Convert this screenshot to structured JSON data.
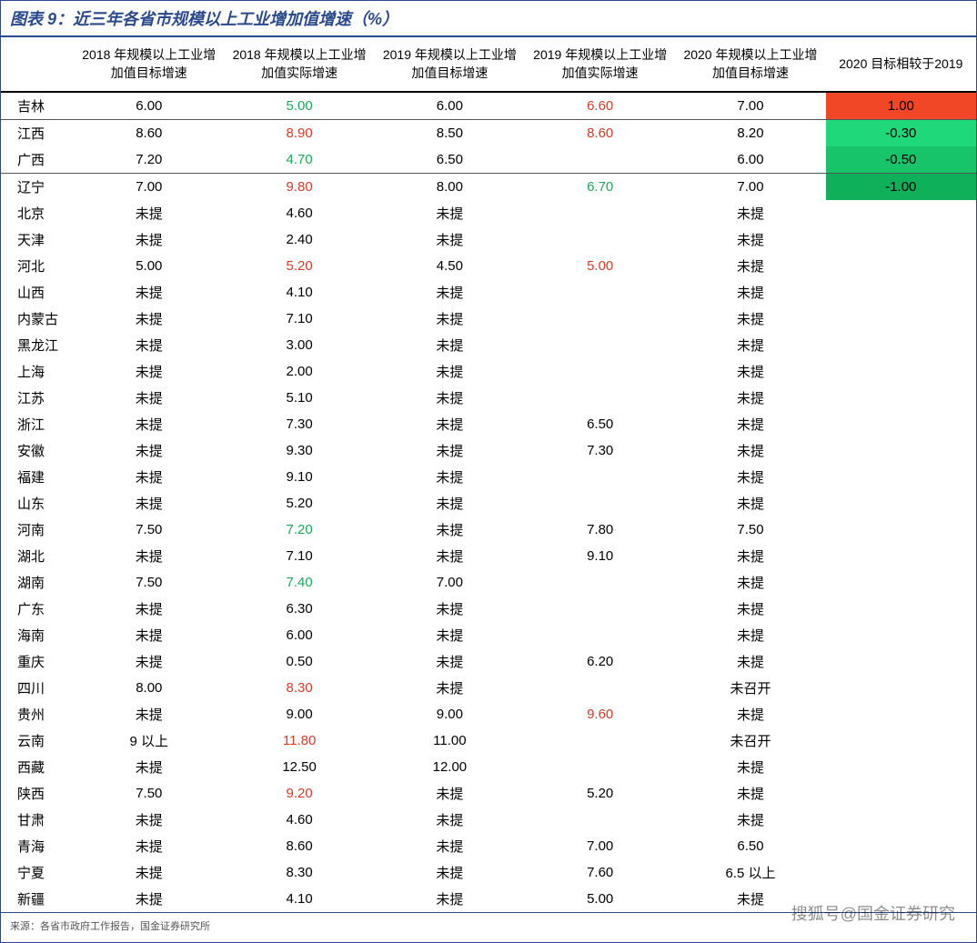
{
  "title": "图表 9：近三年各省市规模以上工业增加值增速（%）",
  "columns": [
    "2018 年规模以上工业增加值目标增速",
    "2018 年规模以上工业增加值实际增速",
    "2019 年规模以上工业增加值目标增速",
    "2019 年规模以上工业增加值实际增速",
    "2020 年规模以上工业增加值目标增速",
    "2020 目标相较于2019"
  ],
  "colors": {
    "accent": "#2b4a8b",
    "red": "#d83a2b",
    "green": "#1fa65a",
    "hl_red_bg": "#f24726",
    "hl_green_bg": "#1fd87a",
    "hl_green_bg2": "#17c46a",
    "hl_green_bg3": "#0fb05a"
  },
  "rows": [
    {
      "p": "吉林",
      "c": [
        {
          "t": "6.00"
        },
        {
          "t": "5.00",
          "fg": "#1fa65a"
        },
        {
          "t": "6.00"
        },
        {
          "t": "6.60",
          "fg": "#d83a2b"
        },
        {
          "t": "7.00"
        },
        {
          "t": "1.00",
          "bg": "#f24726"
        }
      ],
      "topline": true
    },
    {
      "p": "江西",
      "c": [
        {
          "t": "8.60"
        },
        {
          "t": "8.90",
          "fg": "#d83a2b"
        },
        {
          "t": "8.50"
        },
        {
          "t": "8.60",
          "fg": "#d83a2b"
        },
        {
          "t": "8.20"
        },
        {
          "t": "-0.30",
          "bg": "#1fd87a"
        }
      ],
      "topline": true
    },
    {
      "p": "广西",
      "c": [
        {
          "t": "7.20"
        },
        {
          "t": "4.70",
          "fg": "#1fa65a"
        },
        {
          "t": "6.50"
        },
        {
          "t": ""
        },
        {
          "t": "6.00"
        },
        {
          "t": "-0.50",
          "bg": "#17c46a"
        }
      ]
    },
    {
      "p": "辽宁",
      "c": [
        {
          "t": "7.00"
        },
        {
          "t": "9.80",
          "fg": "#d83a2b"
        },
        {
          "t": "8.00"
        },
        {
          "t": "6.70",
          "fg": "#1fa65a"
        },
        {
          "t": "7.00"
        },
        {
          "t": "-1.00",
          "bg": "#0fb05a"
        }
      ],
      "topline": true
    },
    {
      "p": "北京",
      "c": [
        {
          "t": "未提"
        },
        {
          "t": "4.60"
        },
        {
          "t": "未提"
        },
        {
          "t": ""
        },
        {
          "t": "未提"
        },
        {
          "t": ""
        }
      ]
    },
    {
      "p": "天津",
      "c": [
        {
          "t": "未提"
        },
        {
          "t": "2.40"
        },
        {
          "t": "未提"
        },
        {
          "t": ""
        },
        {
          "t": "未提"
        },
        {
          "t": ""
        }
      ]
    },
    {
      "p": "河北",
      "c": [
        {
          "t": "5.00"
        },
        {
          "t": "5.20",
          "fg": "#d83a2b"
        },
        {
          "t": "4.50"
        },
        {
          "t": "5.00",
          "fg": "#d83a2b"
        },
        {
          "t": "未提"
        },
        {
          "t": ""
        }
      ]
    },
    {
      "p": "山西",
      "c": [
        {
          "t": "未提"
        },
        {
          "t": "4.10"
        },
        {
          "t": "未提"
        },
        {
          "t": ""
        },
        {
          "t": "未提"
        },
        {
          "t": ""
        }
      ]
    },
    {
      "p": "内蒙古",
      "c": [
        {
          "t": "未提"
        },
        {
          "t": "7.10"
        },
        {
          "t": "未提"
        },
        {
          "t": ""
        },
        {
          "t": "未提"
        },
        {
          "t": ""
        }
      ]
    },
    {
      "p": "黑龙江",
      "c": [
        {
          "t": "未提"
        },
        {
          "t": "3.00"
        },
        {
          "t": "未提"
        },
        {
          "t": ""
        },
        {
          "t": "未提"
        },
        {
          "t": ""
        }
      ]
    },
    {
      "p": "上海",
      "c": [
        {
          "t": "未提"
        },
        {
          "t": "2.00"
        },
        {
          "t": "未提"
        },
        {
          "t": ""
        },
        {
          "t": "未提"
        },
        {
          "t": ""
        }
      ]
    },
    {
      "p": "江苏",
      "c": [
        {
          "t": "未提"
        },
        {
          "t": "5.10"
        },
        {
          "t": "未提"
        },
        {
          "t": ""
        },
        {
          "t": "未提"
        },
        {
          "t": ""
        }
      ]
    },
    {
      "p": "浙江",
      "c": [
        {
          "t": "未提"
        },
        {
          "t": "7.30"
        },
        {
          "t": "未提"
        },
        {
          "t": "6.50"
        },
        {
          "t": "未提"
        },
        {
          "t": ""
        }
      ]
    },
    {
      "p": "安徽",
      "c": [
        {
          "t": "未提"
        },
        {
          "t": "9.30"
        },
        {
          "t": "未提"
        },
        {
          "t": "7.30"
        },
        {
          "t": "未提"
        },
        {
          "t": ""
        }
      ]
    },
    {
      "p": "福建",
      "c": [
        {
          "t": "未提"
        },
        {
          "t": "9.10"
        },
        {
          "t": "未提"
        },
        {
          "t": ""
        },
        {
          "t": "未提"
        },
        {
          "t": ""
        }
      ]
    },
    {
      "p": "山东",
      "c": [
        {
          "t": "未提"
        },
        {
          "t": "5.20"
        },
        {
          "t": "未提"
        },
        {
          "t": ""
        },
        {
          "t": "未提"
        },
        {
          "t": ""
        }
      ]
    },
    {
      "p": "河南",
      "c": [
        {
          "t": "7.50"
        },
        {
          "t": "7.20",
          "fg": "#1fa65a"
        },
        {
          "t": "未提"
        },
        {
          "t": "7.80"
        },
        {
          "t": "7.50"
        },
        {
          "t": ""
        }
      ]
    },
    {
      "p": "湖北",
      "c": [
        {
          "t": "未提"
        },
        {
          "t": "7.10"
        },
        {
          "t": "未提"
        },
        {
          "t": "9.10"
        },
        {
          "t": "未提"
        },
        {
          "t": ""
        }
      ]
    },
    {
      "p": "湖南",
      "c": [
        {
          "t": "7.50"
        },
        {
          "t": "7.40",
          "fg": "#1fa65a"
        },
        {
          "t": "7.00"
        },
        {
          "t": ""
        },
        {
          "t": "未提"
        },
        {
          "t": ""
        }
      ]
    },
    {
      "p": "广东",
      "c": [
        {
          "t": "未提"
        },
        {
          "t": "6.30"
        },
        {
          "t": "未提"
        },
        {
          "t": ""
        },
        {
          "t": "未提"
        },
        {
          "t": ""
        }
      ]
    },
    {
      "p": "海南",
      "c": [
        {
          "t": "未提"
        },
        {
          "t": "6.00"
        },
        {
          "t": "未提"
        },
        {
          "t": ""
        },
        {
          "t": "未提"
        },
        {
          "t": ""
        }
      ]
    },
    {
      "p": "重庆",
      "c": [
        {
          "t": "未提"
        },
        {
          "t": "0.50"
        },
        {
          "t": "未提"
        },
        {
          "t": "6.20"
        },
        {
          "t": "未提"
        },
        {
          "t": ""
        }
      ]
    },
    {
      "p": "四川",
      "c": [
        {
          "t": "8.00"
        },
        {
          "t": "8.30",
          "fg": "#d83a2b"
        },
        {
          "t": "未提"
        },
        {
          "t": ""
        },
        {
          "t": "未召开"
        },
        {
          "t": ""
        }
      ]
    },
    {
      "p": "贵州",
      "c": [
        {
          "t": "未提"
        },
        {
          "t": "9.00"
        },
        {
          "t": "9.00"
        },
        {
          "t": "9.60",
          "fg": "#d83a2b"
        },
        {
          "t": "未提"
        },
        {
          "t": ""
        }
      ]
    },
    {
      "p": "云南",
      "c": [
        {
          "t": "9 以上"
        },
        {
          "t": "11.80",
          "fg": "#d83a2b"
        },
        {
          "t": "11.00"
        },
        {
          "t": ""
        },
        {
          "t": "未召开"
        },
        {
          "t": ""
        }
      ]
    },
    {
      "p": "西藏",
      "c": [
        {
          "t": "未提"
        },
        {
          "t": "12.50"
        },
        {
          "t": "12.00"
        },
        {
          "t": ""
        },
        {
          "t": "未提"
        },
        {
          "t": ""
        }
      ]
    },
    {
      "p": "陕西",
      "c": [
        {
          "t": "7.50"
        },
        {
          "t": "9.20",
          "fg": "#d83a2b"
        },
        {
          "t": "未提"
        },
        {
          "t": "5.20"
        },
        {
          "t": "未提"
        },
        {
          "t": ""
        }
      ]
    },
    {
      "p": "甘肃",
      "c": [
        {
          "t": "未提"
        },
        {
          "t": "4.60"
        },
        {
          "t": "未提"
        },
        {
          "t": ""
        },
        {
          "t": "未提"
        },
        {
          "t": ""
        }
      ]
    },
    {
      "p": "青海",
      "c": [
        {
          "t": "未提"
        },
        {
          "t": "8.60"
        },
        {
          "t": "未提"
        },
        {
          "t": "7.00"
        },
        {
          "t": "6.50"
        },
        {
          "t": ""
        }
      ]
    },
    {
      "p": "宁夏",
      "c": [
        {
          "t": "未提"
        },
        {
          "t": "8.30"
        },
        {
          "t": "未提"
        },
        {
          "t": "7.60"
        },
        {
          "t": "6.5 以上"
        },
        {
          "t": ""
        }
      ]
    },
    {
      "p": "新疆",
      "c": [
        {
          "t": "未提"
        },
        {
          "t": "4.10"
        },
        {
          "t": "未提"
        },
        {
          "t": "5.00"
        },
        {
          "t": "未提"
        },
        {
          "t": ""
        }
      ]
    }
  ],
  "source": "来源：各省市政府工作报告，国金证券研究所",
  "watermark": "搜狐号@国金证券研究"
}
